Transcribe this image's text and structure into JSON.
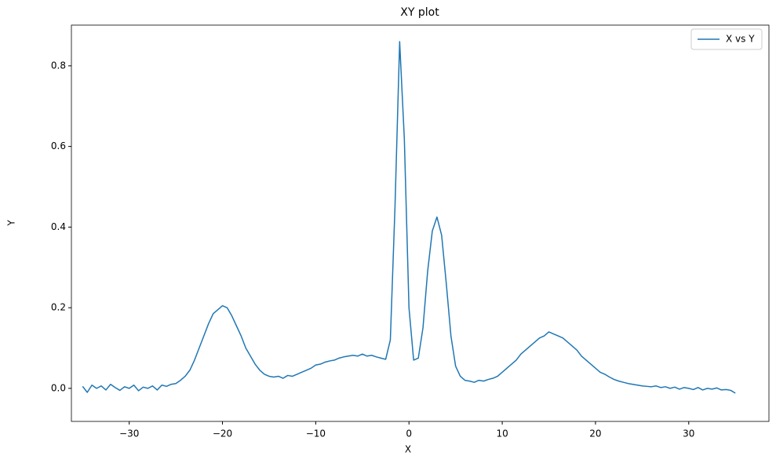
{
  "chart_data": {
    "type": "line",
    "title": "XY plot",
    "x_label": "X",
    "y_label": "Y",
    "x": [
      -35,
      -34.5,
      -34,
      -33.5,
      -33,
      -32.5,
      -32,
      -31.5,
      -31,
      -30.5,
      -30,
      -29.5,
      -29,
      -28.5,
      -28,
      -27.5,
      -27,
      -26.5,
      -26,
      -25.5,
      -25,
      -24.5,
      -24,
      -23.5,
      -23,
      -22.5,
      -22,
      -21.5,
      -21,
      -20.5,
      -20,
      -19.5,
      -19,
      -18.5,
      -18,
      -17.5,
      -17,
      -16.5,
      -16,
      -15.5,
      -15,
      -14.5,
      -14,
      -13.5,
      -13,
      -12.5,
      -12,
      -11.5,
      -11,
      -10.5,
      -10,
      -9.5,
      -9,
      -8.5,
      -8,
      -7.5,
      -7,
      -6.5,
      -6,
      -5.5,
      -5,
      -4.5,
      -4,
      -3.5,
      -3,
      -2.5,
      -2,
      -1.5,
      -1,
      -0.5,
      0,
      0.5,
      1,
      1.5,
      2,
      2.5,
      3,
      3.5,
      4,
      4.5,
      5,
      5.5,
      6,
      6.5,
      7,
      7.5,
      8,
      8.5,
      9,
      9.5,
      10,
      10.5,
      11,
      11.5,
      12,
      12.5,
      13,
      13.5,
      14,
      14.5,
      15,
      15.5,
      16,
      16.5,
      17,
      17.5,
      18,
      18.5,
      19,
      19.5,
      20,
      20.5,
      21,
      21.5,
      22,
      22.5,
      23,
      23.5,
      24,
      24.5,
      25,
      25.5,
      26,
      26.5,
      27,
      27.5,
      28,
      28.5,
      29,
      29.5,
      30,
      30.5,
      31,
      31.5,
      32,
      32.5,
      33,
      33.5,
      34,
      34.5,
      35
    ],
    "series": [
      {
        "name": "X vs Y",
        "color": "#1f77b4",
        "values": [
          0.005,
          -0.01,
          0.008,
          0.0,
          0.006,
          -0.004,
          0.01,
          0.002,
          -0.005,
          0.004,
          0.0,
          0.008,
          -0.006,
          0.003,
          0.0,
          0.006,
          -0.004,
          0.008,
          0.005,
          0.01,
          0.012,
          0.02,
          0.03,
          0.045,
          0.07,
          0.1,
          0.13,
          0.16,
          0.185,
          0.195,
          0.205,
          0.2,
          0.18,
          0.155,
          0.13,
          0.1,
          0.08,
          0.06,
          0.045,
          0.035,
          0.03,
          0.028,
          0.03,
          0.025,
          0.032,
          0.03,
          0.035,
          0.04,
          0.045,
          0.05,
          0.058,
          0.06,
          0.065,
          0.068,
          0.07,
          0.075,
          0.078,
          0.08,
          0.082,
          0.08,
          0.085,
          0.08,
          0.082,
          0.078,
          0.075,
          0.072,
          0.12,
          0.45,
          0.86,
          0.62,
          0.2,
          0.07,
          0.075,
          0.15,
          0.29,
          0.39,
          0.425,
          0.38,
          0.26,
          0.13,
          0.055,
          0.03,
          0.02,
          0.018,
          0.015,
          0.02,
          0.018,
          0.022,
          0.025,
          0.03,
          0.04,
          0.05,
          0.06,
          0.07,
          0.085,
          0.095,
          0.105,
          0.115,
          0.125,
          0.13,
          0.14,
          0.135,
          0.13,
          0.125,
          0.115,
          0.105,
          0.095,
          0.08,
          0.07,
          0.06,
          0.05,
          0.04,
          0.035,
          0.028,
          0.022,
          0.018,
          0.015,
          0.012,
          0.01,
          0.008,
          0.006,
          0.005,
          0.004,
          0.006,
          0.002,
          0.004,
          0.0,
          0.003,
          -0.002,
          0.002,
          0.0,
          -0.003,
          0.002,
          -0.004,
          0.0,
          -0.002,
          0.001,
          -0.004,
          -0.003,
          -0.005,
          -0.012
        ]
      }
    ],
    "xlim": [
      -36.2,
      38.6
    ],
    "xticks": [
      {
        "value": -30,
        "label": "−30"
      },
      {
        "value": -20,
        "label": "−20"
      },
      {
        "value": -10,
        "label": "−10"
      },
      0,
      10,
      20,
      30
    ],
    "ylim": [
      -0.082,
      0.901
    ],
    "yticks": [
      {
        "value": 0,
        "label": "0.0"
      },
      0.2,
      0.4,
      0.6,
      0.8
    ],
    "legend": "upper right"
  }
}
